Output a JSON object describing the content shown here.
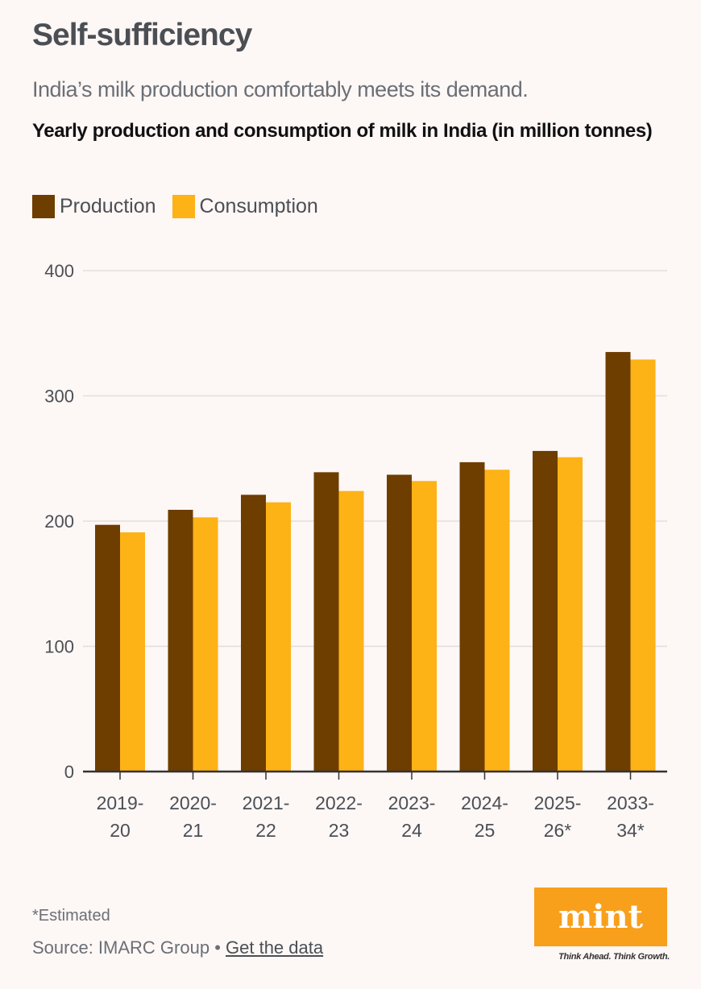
{
  "header": {
    "title": "Self-sufficiency",
    "subtitle": "India’s milk production comfortably meets its demand."
  },
  "chart_data": {
    "type": "bar",
    "title": "Yearly production and consumption of milk in India (in million tonnes)",
    "xlabel": "",
    "ylabel": "",
    "ylim": [
      0,
      400
    ],
    "yticks": [
      0,
      100,
      200,
      300,
      400
    ],
    "grid": true,
    "legend_position": "top-left",
    "categories": [
      "2019-20",
      "2020-21",
      "2021-22",
      "2022-23",
      "2023-24",
      "2024-25",
      "2025-26*",
      "2033-34*"
    ],
    "category_lines": [
      [
        "2019-",
        "20"
      ],
      [
        "2020-",
        "21"
      ],
      [
        "2021-",
        "22"
      ],
      [
        "2022-",
        "23"
      ],
      [
        "2023-",
        "24"
      ],
      [
        "2024-",
        "25"
      ],
      [
        "2025-",
        "26*"
      ],
      [
        "2033-",
        "34*"
      ]
    ],
    "series": [
      {
        "name": "Production",
        "color": "#6e3d00",
        "values": [
          197,
          209,
          221,
          239,
          237,
          247,
          256,
          335
        ]
      },
      {
        "name": "Consumption",
        "color": "#fdb216",
        "values": [
          191,
          203,
          215,
          224,
          232,
          241,
          251,
          329
        ]
      }
    ]
  },
  "footer": {
    "note": "*Estimated",
    "source_prefix": "Source: IMARC Group • ",
    "source_link": "Get the data"
  },
  "logo": {
    "text": "mint",
    "tagline": "Think Ahead. Think Growth.",
    "color": "#f89f1b"
  }
}
